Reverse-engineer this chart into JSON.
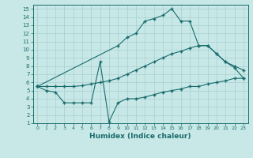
{
  "xlabel": "Humidex (Indice chaleur)",
  "bg_color": "#c8e8e8",
  "grid_color": "#a0c8c8",
  "line_color": "#1a6b6b",
  "spine_color": "#1a6b6b",
  "xlim": [
    -0.5,
    23.5
  ],
  "ylim": [
    1,
    15.5
  ],
  "xticks": [
    0,
    1,
    2,
    3,
    4,
    5,
    6,
    7,
    8,
    9,
    10,
    11,
    12,
    13,
    14,
    15,
    16,
    17,
    18,
    19,
    20,
    21,
    22,
    23
  ],
  "yticks": [
    1,
    2,
    3,
    4,
    5,
    6,
    7,
    8,
    9,
    10,
    11,
    12,
    13,
    14,
    15
  ],
  "line1_x": [
    0,
    1,
    2,
    3,
    4,
    5,
    6,
    7,
    8,
    9,
    10,
    11,
    12,
    13,
    14,
    15,
    16,
    17,
    18,
    19,
    20,
    21,
    22,
    23
  ],
  "line1_y": [
    5.5,
    5.0,
    4.8,
    3.5,
    3.5,
    3.5,
    3.5,
    8.5,
    1.2,
    3.5,
    4.0,
    4.0,
    4.2,
    4.5,
    4.8,
    5.0,
    5.2,
    5.5,
    5.5,
    5.8,
    6.0,
    6.2,
    6.5,
    6.5
  ],
  "line2_x": [
    0,
    1,
    2,
    3,
    4,
    5,
    6,
    7,
    8,
    9,
    10,
    11,
    12,
    13,
    14,
    15,
    16,
    17,
    18,
    19,
    20,
    21,
    22,
    23
  ],
  "line2_y": [
    5.5,
    5.5,
    5.5,
    5.5,
    5.5,
    5.6,
    5.8,
    6.0,
    6.2,
    6.5,
    7.0,
    7.5,
    8.0,
    8.5,
    9.0,
    9.5,
    9.8,
    10.2,
    10.5,
    10.5,
    9.5,
    8.5,
    8.0,
    7.5
  ],
  "line3_x": [
    0,
    9,
    10,
    11,
    12,
    13,
    14,
    15,
    16,
    17,
    18,
    19,
    20,
    21,
    22,
    23
  ],
  "line3_y": [
    5.5,
    10.5,
    11.5,
    12.0,
    13.5,
    13.8,
    14.2,
    15.0,
    13.5,
    13.5,
    10.5,
    10.5,
    9.5,
    8.5,
    7.8,
    6.5
  ]
}
